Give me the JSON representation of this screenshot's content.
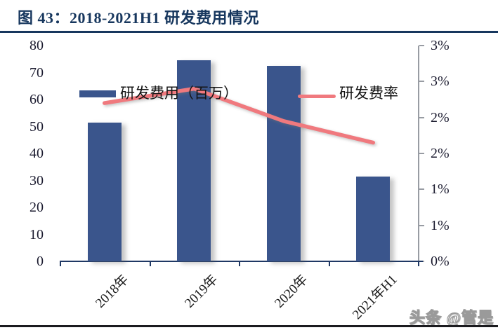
{
  "page": {
    "title": "图 43：2018-2021H1 研发费用情况",
    "watermark": "头条 @管是"
  },
  "legend": {
    "bar_label": "研发费用（百万）",
    "line_label": "研发费率"
  },
  "colors": {
    "bar": "#3A558C",
    "line": "#F0797E",
    "title_navy": "#17375E",
    "axis_text": "#1B1B2F",
    "right_axis_line": "#989CA3",
    "bottom_axis": "#1F3864"
  },
  "chart_data": {
    "type": "bar",
    "subtype": "combo-bar-line",
    "title": "图 43：2018-2021H1 研发费用情况",
    "categories": [
      "2018年",
      "2019年",
      "2020年",
      "2021年H1"
    ],
    "series": [
      {
        "name": "研发费用（百万）",
        "type": "bar",
        "axis": "left",
        "values": [
          51.5,
          74.5,
          72.5,
          31.5
        ]
      },
      {
        "name": "研发费率",
        "type": "line",
        "axis": "right",
        "values": [
          2.2,
          2.4,
          1.95,
          1.65
        ]
      }
    ],
    "left_axis": {
      "min": 0,
      "max": 80,
      "tick_step": 10,
      "tick_labels": [
        "80",
        "70",
        "60",
        "50",
        "40",
        "30",
        "20",
        "10",
        "0"
      ]
    },
    "right_axis": {
      "min": 0,
      "max": 3,
      "tick_step_pct": 0.5,
      "tick_labels": [
        "3%",
        "3%",
        "2%",
        "2%",
        "1%",
        "1%",
        "0%"
      ]
    },
    "legend_position": "top-inside",
    "grid": false
  }
}
